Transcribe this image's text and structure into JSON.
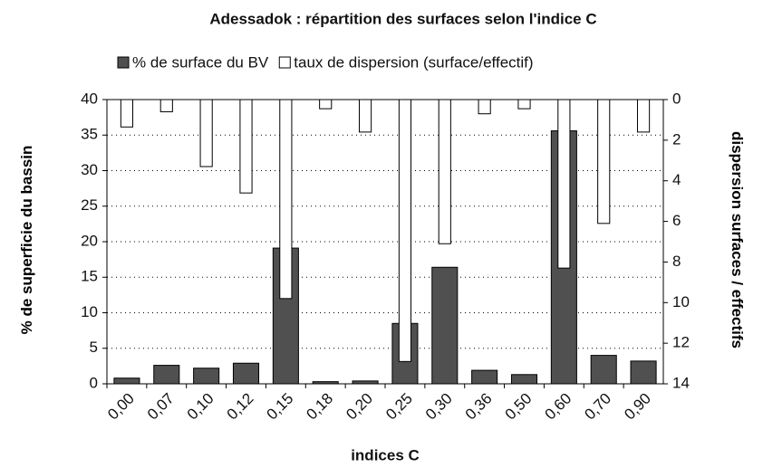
{
  "chart_data": {
    "type": "bar",
    "title": "Adessadok : répartition des surfaces selon  l'indice C",
    "x_label": "indices  C",
    "y_label": "% de superficie du bassin",
    "y2_label": "dispersion  surfaces / effectifs",
    "categories": [
      "0,00",
      "0,07",
      "0,10",
      "0,12",
      "0,15",
      "0,18",
      "0,20",
      "0,25",
      "0,30",
      "0,36",
      "0,50",
      "0,60",
      "0,70",
      "0,90"
    ],
    "series": [
      {
        "name": "% de surface du BV",
        "color": "#505050",
        "values": [
          0.8,
          2.6,
          2.2,
          2.9,
          19.1,
          0.3,
          0.4,
          8.5,
          16.4,
          1.9,
          1.3,
          35.6,
          4.0,
          3.2
        ]
      },
      {
        "name": "taux de dispersion (surface/effectif)",
        "color": "#ffffff",
        "axis": "y2",
        "values": [
          1.35,
          0.6,
          3.3,
          4.6,
          9.8,
          0.45,
          1.6,
          12.9,
          7.1,
          0.7,
          0.45,
          8.3,
          6.1,
          1.6
        ]
      }
    ],
    "ylim": [
      0,
      40
    ],
    "yticks": [
      0,
      5,
      10,
      15,
      20,
      25,
      30,
      35,
      40
    ],
    "y2lim": [
      0,
      14
    ],
    "y2ticks": [
      0,
      2,
      4,
      6,
      8,
      10,
      12,
      14
    ],
    "y2_inverted": true,
    "grid": true,
    "legend": "top"
  }
}
